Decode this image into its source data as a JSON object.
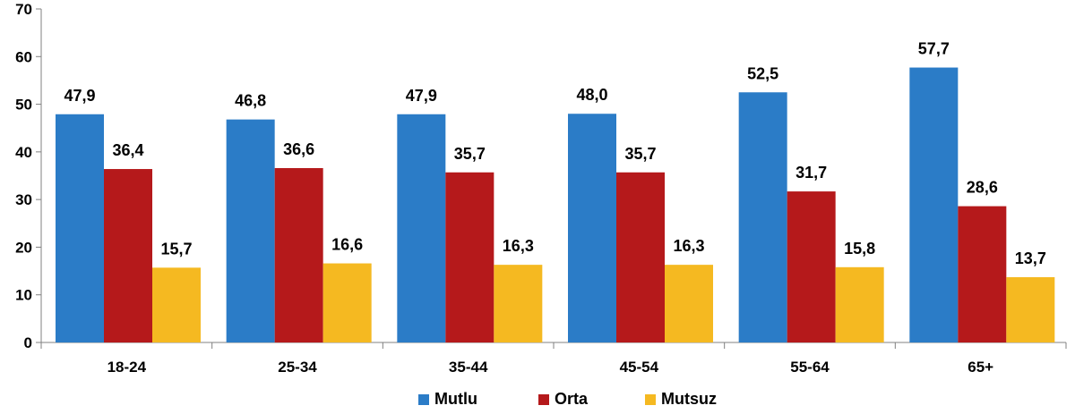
{
  "chart_data": {
    "type": "bar",
    "categories": [
      "18-24",
      "25-34",
      "35-44",
      "45-54",
      "55-64",
      "65+"
    ],
    "series": [
      {
        "name": "Mutlu",
        "color": "#2b7cc7",
        "values": [
          47.9,
          46.8,
          47.9,
          48.0,
          52.5,
          57.7
        ],
        "labels": [
          "47,9",
          "46,8",
          "47,9",
          "48,0",
          "52,5",
          "57,7"
        ]
      },
      {
        "name": "Orta",
        "color": "#b5191b",
        "values": [
          36.4,
          36.6,
          35.7,
          35.7,
          31.7,
          28.6
        ],
        "labels": [
          "36,4",
          "36,6",
          "35,7",
          "35,7",
          "31,7",
          "28,6"
        ]
      },
      {
        "name": "Mutsuz",
        "color": "#f5b921",
        "values": [
          15.7,
          16.6,
          16.3,
          16.3,
          15.8,
          13.7
        ],
        "labels": [
          "15,7",
          "16,6",
          "16,3",
          "16,3",
          "15,8",
          "13,7"
        ]
      }
    ],
    "yticks": [
      "0",
      "10",
      "20",
      "30",
      "40",
      "50",
      "60",
      "70"
    ],
    "ylim": [
      0,
      70
    ],
    "grid": false,
    "legend_position": "bottom",
    "title": "",
    "xlabel": "",
    "ylabel": ""
  }
}
